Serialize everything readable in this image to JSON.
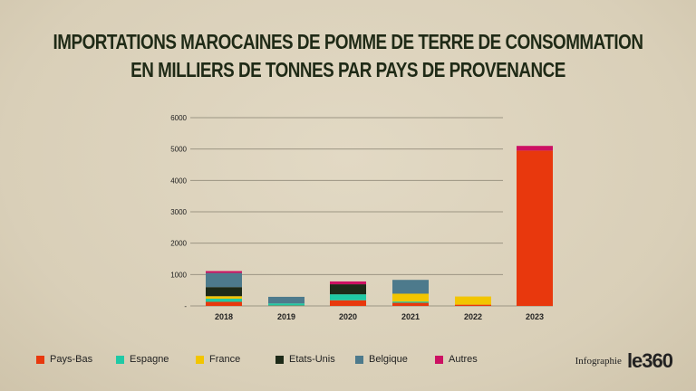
{
  "title_line1": "IMPORTATIONS MAROCAINES DE POMME DE TERRE DE CONSOMMATION",
  "title_line2": "EN MILLIERS DE TONNES PAR PAYS DE PROVENANCE",
  "credit": {
    "label": "Infographie",
    "logo": "le360"
  },
  "chart_data": {
    "type": "bar",
    "stacked": true,
    "title": "IMPORTATIONS MAROCAINES DE POMME DE TERRE DE CONSOMMATION EN MILLIERS DE TONNES PAR PAYS DE PROVENANCE",
    "categories": [
      "2018",
      "2019",
      "2020",
      "2021",
      "2022",
      "2023"
    ],
    "ylim": [
      0,
      6000
    ],
    "yticks": [
      "-",
      "1000",
      "2000",
      "3000",
      "4000",
      "5000",
      "6000"
    ],
    "grid": true,
    "legend_position": "bottom",
    "series": [
      {
        "name": "Pays-Bas",
        "color": "#e8380d",
        "values": [
          130,
          10,
          180,
          100,
          40,
          4950
        ]
      },
      {
        "name": "Espagne",
        "color": "#1fc9a5",
        "values": [
          100,
          70,
          190,
          40,
          0,
          0
        ]
      },
      {
        "name": "France",
        "color": "#f2c500",
        "values": [
          80,
          0,
          0,
          250,
          260,
          0
        ]
      },
      {
        "name": "Etats-Unis",
        "color": "#1d2a18",
        "values": [
          290,
          0,
          320,
          0,
          0,
          0
        ]
      },
      {
        "name": "Belgique",
        "color": "#4d7a8c",
        "values": [
          450,
          210,
          0,
          440,
          0,
          0
        ]
      },
      {
        "name": "Autres",
        "color": "#cc1062",
        "values": [
          60,
          0,
          90,
          0,
          0,
          150
        ]
      }
    ]
  }
}
